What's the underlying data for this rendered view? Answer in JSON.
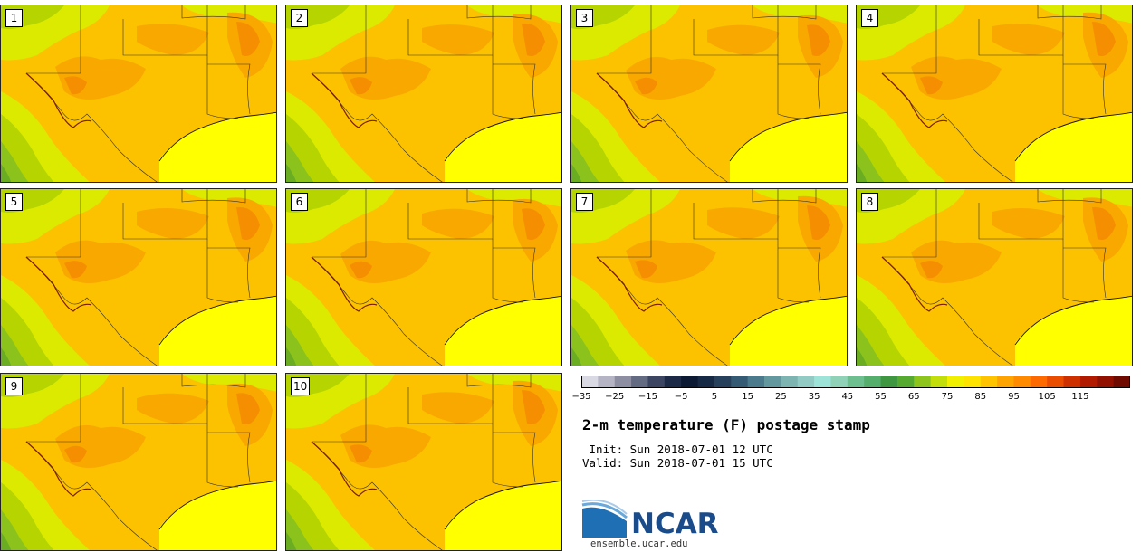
{
  "panels": [
    {
      "label": "1"
    },
    {
      "label": "2"
    },
    {
      "label": "3"
    },
    {
      "label": "4"
    },
    {
      "label": "5"
    },
    {
      "label": "6"
    },
    {
      "label": "7"
    },
    {
      "label": "8"
    },
    {
      "label": "9"
    },
    {
      "label": "10"
    }
  ],
  "colorbar": {
    "tick_labels": [
      "−35",
      "−25",
      "−15",
      "−5",
      "5",
      "15",
      "25",
      "35",
      "45",
      "55",
      "65",
      "75",
      "85",
      "95",
      "105",
      "115"
    ],
    "colors": [
      "#d9d9e3",
      "#b4b4c4",
      "#8e8ea3",
      "#636b82",
      "#3c4562",
      "#1d2a47",
      "#0c1a33",
      "#172a45",
      "#27405c",
      "#345a74",
      "#4a7a8c",
      "#63989f",
      "#7db4b2",
      "#92cac4",
      "#9ee3d8",
      "#8fd2b7",
      "#6ebf8f",
      "#56ae6d",
      "#3f9742",
      "#56aa2f",
      "#8dc51c",
      "#c2df0b",
      "#f0f000",
      "#ffe300",
      "#ffc300",
      "#ffa300",
      "#ff8a00",
      "#ff6a00",
      "#ea4c00",
      "#cf3000",
      "#b21a00",
      "#911000",
      "#6e0a00"
    ]
  },
  "title": "2-m temperature (F) postage stamp",
  "init_line": " Init: Sun 2018-07-01 12 UTC",
  "valid_line": "Valid: Sun 2018-07-01 15 UTC",
  "logo_text": "NCAR",
  "logo_url": "ensemble.ucar.edu",
  "map_colors": {
    "gulf": "#ffff00",
    "land": "#fcc200",
    "hot": "#f9a800",
    "hotter": "#f58e00",
    "cool": "#dcea00",
    "cooler": "#b6d400",
    "green": "#8cc21c",
    "deep": "#6aad22"
  }
}
